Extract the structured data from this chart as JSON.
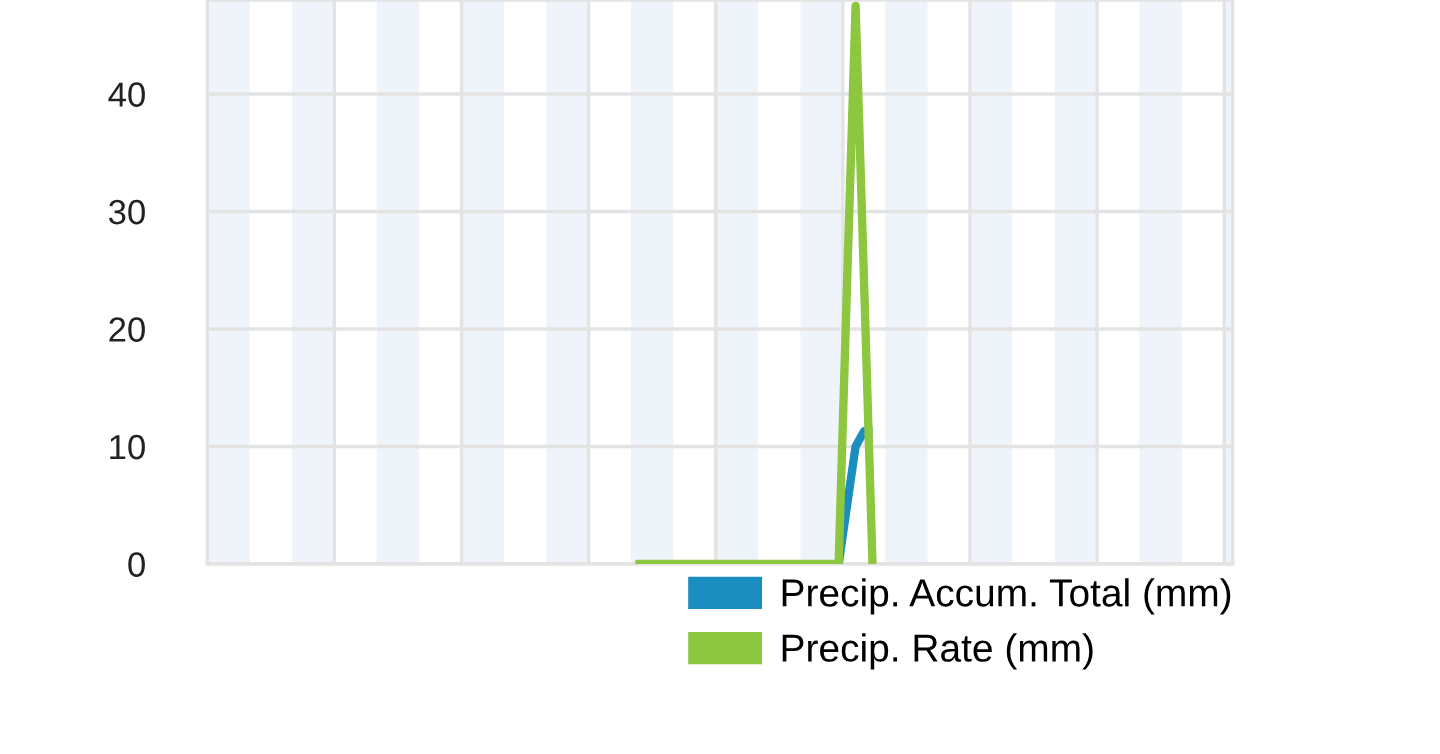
{
  "chart_data": {
    "type": "line",
    "categories": [
      null,
      null,
      null,
      null,
      null,
      null,
      null,
      null,
      null,
      null,
      null,
      null,
      null,
      null,
      null,
      null,
      null,
      null,
      null,
      null,
      null,
      null,
      null,
      null,
      null,
      null,
      null,
      null,
      null,
      null,
      null,
      null,
      null,
      null,
      null,
      null,
      null,
      null,
      null,
      null,
      null,
      null,
      null,
      null,
      null,
      null,
      null,
      null,
      null,
      null,
      null,
      null,
      null,
      null,
      null,
      null,
      null,
      null,
      null,
      null,
      null,
      null,
      null,
      null,
      null,
      null,
      null,
      null,
      null,
      null,
      null,
      null,
      null,
      null,
      null,
      null,
      null,
      null,
      null,
      null,
      null,
      null,
      null,
      null,
      null,
      null,
      null,
      null,
      null,
      null,
      null,
      null,
      null,
      null,
      null,
      null,
      null,
      null,
      null,
      null,
      null,
      null,
      null,
      null,
      null,
      null,
      null,
      null,
      null,
      null,
      null,
      null,
      null,
      null,
      null,
      null,
      null,
      null,
      null,
      null,
      null
    ],
    "series": [
      {
        "name": "Precip. Accum. Total (mm)",
        "color": "#1b8dbf",
        "values": [
          null,
          null,
          null,
          null,
          null,
          null,
          null,
          null,
          null,
          null,
          null,
          null,
          null,
          null,
          null,
          null,
          null,
          null,
          null,
          null,
          null,
          null,
          null,
          null,
          null,
          null,
          null,
          null,
          null,
          null,
          null,
          null,
          null,
          null,
          null,
          null,
          null,
          null,
          null,
          null,
          null,
          null,
          null,
          null,
          null,
          null,
          null,
          null,
          null,
          null,
          null,
          null,
          null,
          null,
          null,
          null,
          null,
          null,
          null,
          null,
          null,
          null,
          null,
          null,
          null,
          null,
          null,
          null,
          null,
          null,
          null,
          null,
          null,
          null,
          0,
          5,
          10,
          11.3,
          11.3,
          null,
          null,
          null,
          null,
          null,
          null,
          null,
          null,
          null,
          null,
          null,
          null,
          null,
          null,
          null,
          null,
          null,
          null,
          null,
          null,
          null,
          null,
          null,
          null,
          null,
          null,
          null,
          null,
          null,
          null,
          null,
          null,
          null,
          null,
          null,
          null,
          null,
          null,
          null,
          null,
          null,
          null
        ]
      },
      {
        "name": "Precip. Rate (mm)",
        "color": "#8dc63f",
        "values": [
          null,
          null,
          null,
          null,
          null,
          null,
          null,
          null,
          null,
          null,
          null,
          null,
          null,
          null,
          null,
          null,
          null,
          null,
          null,
          null,
          null,
          null,
          null,
          null,
          null,
          null,
          null,
          null,
          null,
          null,
          null,
          null,
          null,
          null,
          null,
          null,
          null,
          null,
          null,
          null,
          null,
          null,
          null,
          null,
          null,
          null,
          null,
          null,
          null,
          null,
          0,
          0,
          0,
          0,
          0,
          0,
          0,
          0,
          0,
          0,
          0,
          0,
          0,
          0,
          0,
          0,
          0,
          0,
          0,
          0,
          0,
          0,
          0,
          0,
          0,
          24,
          47.5,
          24,
          0,
          null,
          null,
          null,
          null,
          null,
          null,
          null,
          null,
          null,
          null,
          null,
          null,
          null,
          null,
          null,
          null,
          null,
          null,
          null,
          null,
          null,
          null,
          null,
          null,
          null,
          null,
          null,
          null,
          null,
          null,
          null,
          null,
          null,
          null,
          null,
          null,
          null,
          null,
          null,
          null,
          null,
          null
        ]
      }
    ],
    "ylim": [
      0,
      48
    ],
    "yticks": [
      0,
      10,
      20,
      30,
      40
    ],
    "grid": true,
    "legend": "bottom right"
  }
}
